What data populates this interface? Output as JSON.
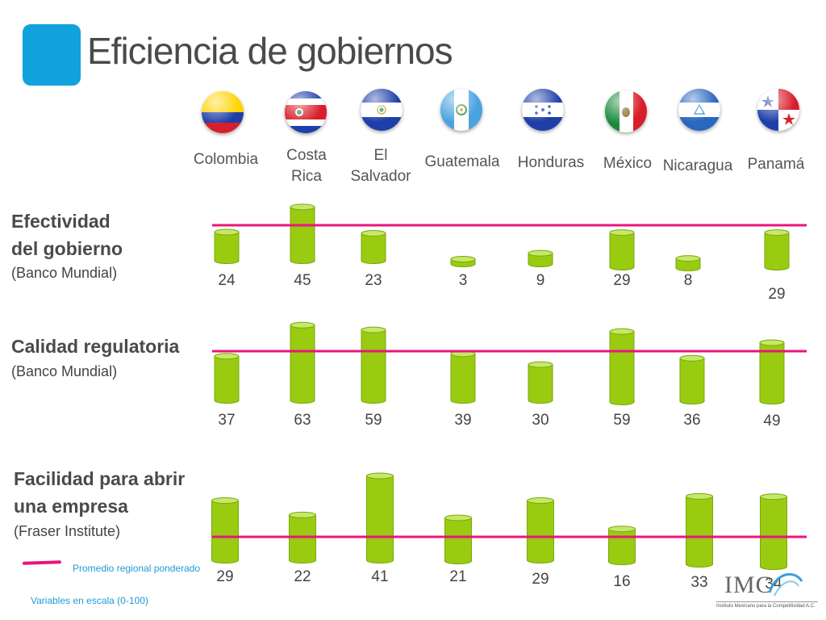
{
  "title": "Eficiencia de gobiernos",
  "countries": [
    {
      "lines": [
        "Colombia"
      ],
      "flag": "colombia-flag"
    },
    {
      "lines": [
        "Costa",
        "Rica"
      ],
      "flag": "costa-rica-flag"
    },
    {
      "lines": [
        "El",
        "Salvador"
      ],
      "flag": "el-salvador-flag"
    },
    {
      "lines": [
        "Guatemala"
      ],
      "flag": "guatemala-flag"
    },
    {
      "lines": [
        "Honduras"
      ],
      "flag": "honduras-flag"
    },
    {
      "lines": [
        "México"
      ],
      "flag": "mexico-flag"
    },
    {
      "lines": [
        "Nicaragua"
      ],
      "flag": "nicaragua-flag"
    },
    {
      "lines": [
        "Panamá"
      ],
      "flag": "panama-flag"
    }
  ],
  "sections": [
    {
      "title_lines": [
        "Efectividad",
        "del gobierno"
      ],
      "source": "(Banco Mundial)"
    },
    {
      "title_lines": [
        "Calidad regulatoria"
      ],
      "source": "(Banco Mundial)"
    },
    {
      "title_lines": [
        "Facilidad para abrir",
        "una empresa"
      ],
      "source": " (Fraser Institute)"
    }
  ],
  "legend": {
    "label": "Promedio regional ponderado"
  },
  "scale_note": "Variables en escala (0-100)",
  "logo": {
    "text": "IMC",
    "subtitle": "Instituto Mexicano para la Competitividad A.C."
  },
  "colors": {
    "bar": "#99cc11",
    "bar_top": "#c6e86a",
    "bar_outline": "#7aa80b",
    "average_line": "#e8157c",
    "title_icon": "#11a1dd"
  },
  "chart_data": [
    {
      "type": "bar",
      "title": "Efectividad del gobierno",
      "subtitle": "(Banco Mundial)",
      "categories": [
        "Colombia",
        "Costa Rica",
        "El Salvador",
        "Guatemala",
        "Honduras",
        "México",
        "Nicaragua",
        "Panamá"
      ],
      "values": [
        24,
        45,
        23,
        3,
        9,
        29,
        8,
        29
      ],
      "ylim": [
        0,
        100
      ]
    },
    {
      "type": "bar",
      "title": "Calidad regulatoria",
      "subtitle": "(Banco Mundial)",
      "categories": [
        "Colombia",
        "Costa Rica",
        "El Salvador",
        "Guatemala",
        "Honduras",
        "México",
        "Nicaragua",
        "Panamá"
      ],
      "values": [
        37,
        63,
        59,
        39,
        30,
        59,
        36,
        49
      ],
      "ylim": [
        0,
        100
      ]
    },
    {
      "type": "bar",
      "title": "Facilidad para abrir una empresa",
      "subtitle": "(Fraser Institute)",
      "categories": [
        "Colombia",
        "Costa Rica",
        "El Salvador",
        "Guatemala",
        "Honduras",
        "México",
        "Nicaragua",
        "Panamá"
      ],
      "values": [
        29,
        22,
        41,
        21,
        29,
        16,
        33,
        34
      ],
      "ylim": [
        0,
        100
      ]
    }
  ]
}
